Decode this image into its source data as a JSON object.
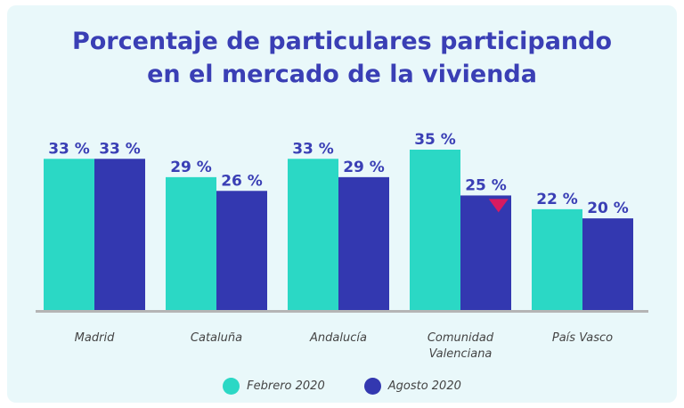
{
  "chart_data": {
    "type": "bar",
    "title_lines": [
      "Porcentaje de particulares participando",
      "en el mercado de la vivienda"
    ],
    "categories": [
      [
        "Madrid"
      ],
      [
        "Cataluña"
      ],
      [
        "Andalucía"
      ],
      [
        "Comunidad",
        "Valenciana"
      ],
      [
        "País Vasco"
      ]
    ],
    "series": [
      {
        "name": "Febrero 2020",
        "color": "#2bd8c5",
        "values": [
          33,
          29,
          33,
          35,
          22
        ],
        "labels": [
          "33 %",
          "29 %",
          "33 %",
          "35 %",
          "22 %"
        ]
      },
      {
        "name": "Agosto 2020",
        "color": "#3338b0",
        "values": [
          33,
          26,
          29,
          25,
          20
        ],
        "labels": [
          "33 %",
          "26 %",
          "29 %",
          "25 %",
          "20 %"
        ]
      }
    ],
    "ylim": [
      0,
      35
    ],
    "marker": {
      "series": 1,
      "category": 3,
      "shape": "down-triangle",
      "color": "#d81b60"
    },
    "legend_position": "bottom",
    "baseline_color": "#b5b5b5"
  }
}
